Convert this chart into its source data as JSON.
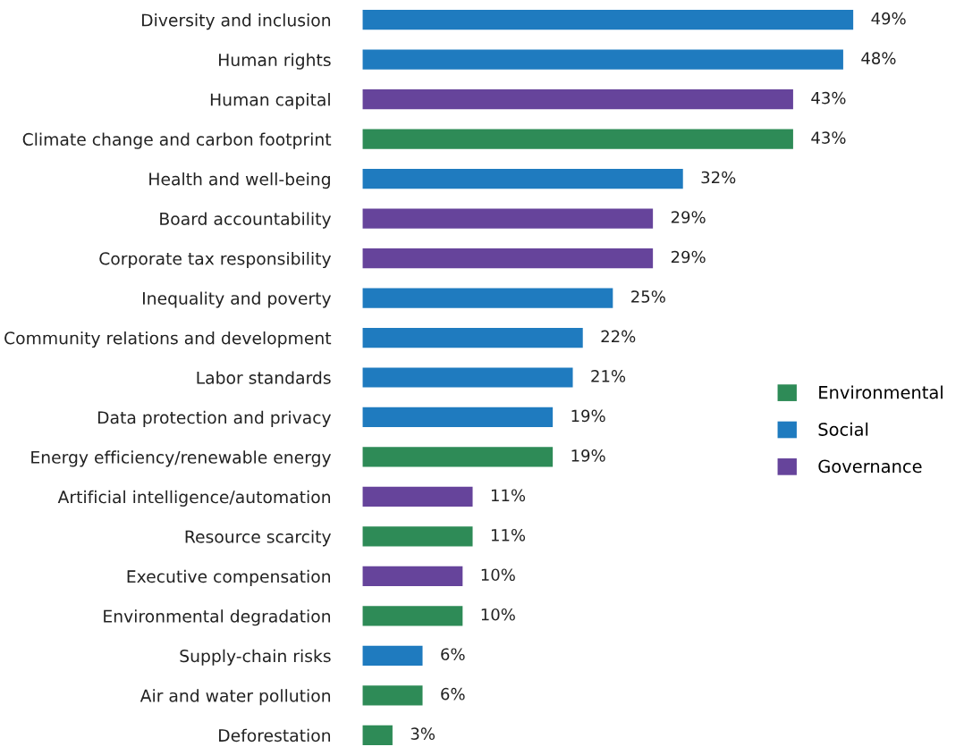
{
  "chart_data": {
    "type": "bar",
    "orientation": "horizontal",
    "legend": "right",
    "grid": false,
    "categories": [
      "Diversity and inclusion",
      "Human rights",
      "Human capital",
      "Climate change and carbon footprint",
      "Health and well-being",
      "Board accountability",
      "Corporate tax responsibility",
      "Inequality and poverty",
      "Community relations and development",
      "Labor standards",
      "Data protection and privacy",
      "Energy efficiency/renewable energy",
      "Artificial intelligence/automation",
      "Resource scarcity",
      "Executive compensation",
      "Environmental degradation",
      "Supply-chain risks",
      "Air and water pollution",
      "Deforestation"
    ],
    "series": [
      {
        "name": "Environmental",
        "color": "#2e8b57",
        "values": [
          null,
          null,
          null,
          43,
          null,
          null,
          null,
          null,
          null,
          null,
          null,
          19,
          null,
          11,
          null,
          10,
          null,
          6,
          3
        ],
        "value_labels": [
          null,
          null,
          null,
          "43%",
          null,
          null,
          null,
          null,
          null,
          null,
          null,
          "19%",
          null,
          "11%",
          null,
          "10%",
          null,
          "6%",
          "3%"
        ]
      },
      {
        "name": "Social",
        "color": "#1f7bbf",
        "values": [
          49,
          48,
          null,
          null,
          32,
          null,
          null,
          25,
          22,
          21,
          19,
          null,
          null,
          null,
          null,
          null,
          6,
          null,
          null
        ],
        "value_labels": [
          "49%",
          "48%",
          null,
          null,
          "32%",
          null,
          null,
          "25%",
          "22%",
          "21%",
          "19%",
          null,
          null,
          null,
          null,
          null,
          "6%",
          null,
          null
        ]
      },
      {
        "name": "Governance",
        "color": "#66449b",
        "values": [
          null,
          null,
          43,
          null,
          null,
          29,
          29,
          null,
          null,
          null,
          null,
          null,
          11,
          null,
          10,
          null,
          null,
          null,
          null
        ],
        "value_labels": [
          null,
          null,
          "43%",
          null,
          null,
          "29%",
          "29%",
          null,
          null,
          null,
          null,
          null,
          "11%",
          null,
          "10%",
          null,
          null,
          null,
          null
        ]
      }
    ]
  }
}
